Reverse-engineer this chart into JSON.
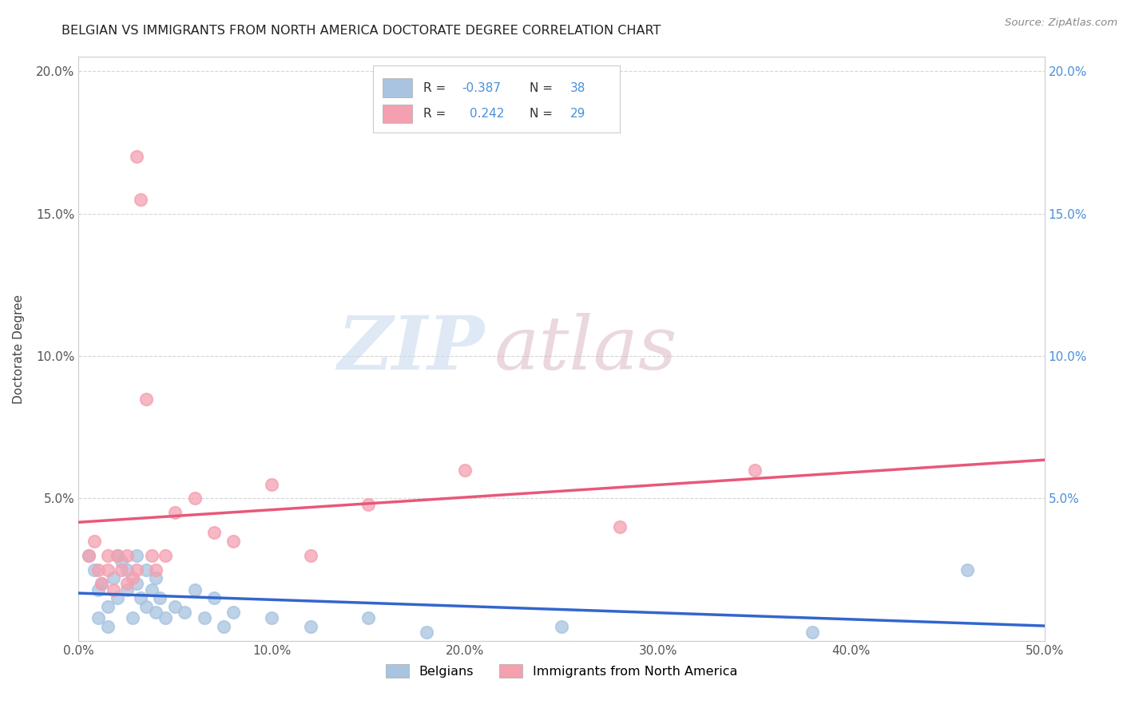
{
  "title": "BELGIAN VS IMMIGRANTS FROM NORTH AMERICA DOCTORATE DEGREE CORRELATION CHART",
  "source": "Source: ZipAtlas.com",
  "ylabel": "Doctorate Degree",
  "xlim": [
    0,
    0.5
  ],
  "ylim": [
    0,
    0.205
  ],
  "xtick_labels": [
    "0.0%",
    "10.0%",
    "20.0%",
    "30.0%",
    "40.0%",
    "50.0%"
  ],
  "xtick_vals": [
    0.0,
    0.1,
    0.2,
    0.3,
    0.4,
    0.5
  ],
  "ytick_labels_left": [
    "",
    "5.0%",
    "10.0%",
    "15.0%",
    "20.0%"
  ],
  "ytick_vals_left": [
    0.0,
    0.05,
    0.1,
    0.15,
    0.2
  ],
  "ytick_labels_right": [
    "",
    "5.0%",
    "10.0%",
    "15.0%",
    "20.0%"
  ],
  "ytick_vals_right": [
    0.0,
    0.05,
    0.1,
    0.15,
    0.2
  ],
  "belgians_color": "#a8c4e0",
  "immigrants_color": "#f4a0b0",
  "trend_belgians_color": "#3366cc",
  "trend_immigrants_color": "#e85878",
  "trend_dashed_color": "#c8d8ec",
  "R_belgians": -0.387,
  "N_belgians": 38,
  "R_immigrants": 0.242,
  "N_immigrants": 29,
  "watermark_zip": "ZIP",
  "watermark_atlas": "atlas",
  "legend_label_belgians": "Belgians",
  "legend_label_immigrants": "Immigrants from North America",
  "belgians_x": [
    0.005,
    0.008,
    0.01,
    0.01,
    0.012,
    0.015,
    0.015,
    0.018,
    0.02,
    0.02,
    0.022,
    0.025,
    0.025,
    0.028,
    0.03,
    0.03,
    0.032,
    0.035,
    0.035,
    0.038,
    0.04,
    0.04,
    0.042,
    0.045,
    0.05,
    0.055,
    0.06,
    0.065,
    0.07,
    0.075,
    0.08,
    0.1,
    0.12,
    0.15,
    0.18,
    0.25,
    0.38,
    0.46
  ],
  "belgians_y": [
    0.03,
    0.025,
    0.008,
    0.018,
    0.02,
    0.005,
    0.012,
    0.022,
    0.03,
    0.015,
    0.028,
    0.018,
    0.025,
    0.008,
    0.02,
    0.03,
    0.015,
    0.012,
    0.025,
    0.018,
    0.01,
    0.022,
    0.015,
    0.008,
    0.012,
    0.01,
    0.018,
    0.008,
    0.015,
    0.005,
    0.01,
    0.008,
    0.005,
    0.008,
    0.003,
    0.005,
    0.003,
    0.025
  ],
  "immigrants_x": [
    0.005,
    0.008,
    0.01,
    0.012,
    0.015,
    0.015,
    0.018,
    0.02,
    0.022,
    0.025,
    0.025,
    0.028,
    0.03,
    0.03,
    0.032,
    0.035,
    0.038,
    0.04,
    0.045,
    0.05,
    0.06,
    0.07,
    0.08,
    0.1,
    0.12,
    0.15,
    0.2,
    0.28,
    0.35
  ],
  "immigrants_y": [
    0.03,
    0.035,
    0.025,
    0.02,
    0.025,
    0.03,
    0.018,
    0.03,
    0.025,
    0.02,
    0.03,
    0.022,
    0.025,
    0.17,
    0.155,
    0.085,
    0.03,
    0.025,
    0.03,
    0.045,
    0.05,
    0.038,
    0.035,
    0.055,
    0.03,
    0.048,
    0.06,
    0.04,
    0.06
  ]
}
